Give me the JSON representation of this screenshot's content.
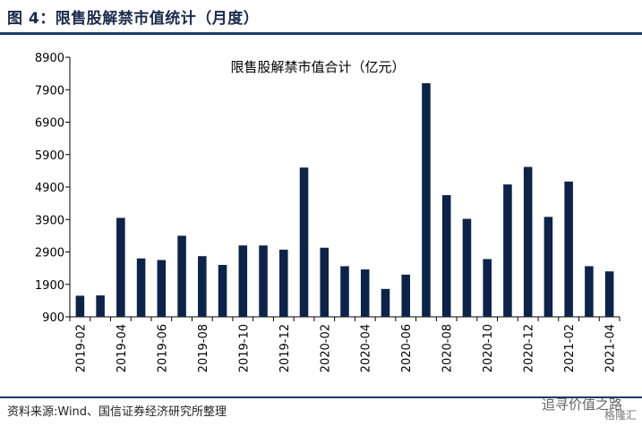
{
  "figure_title": "图 4：限售股解禁市值统计（月度）",
  "source_note": "资料来源:Wind、国信证券经济研究所整理",
  "watermark_text": "追寻价值之路",
  "watermark_logo": "格隆汇",
  "colors": {
    "bar": "#0d2348",
    "rule": "#1a3a6b"
  },
  "chart_data": {
    "type": "bar",
    "title": "限售股解禁市值合计（亿元）",
    "xlabel": "",
    "ylabel": "",
    "ylim": [
      900,
      8900
    ],
    "yticks": [
      900,
      1900,
      2900,
      3900,
      4900,
      5900,
      6900,
      7900,
      8900
    ],
    "grid": false,
    "categories": [
      "2019-02",
      "2019-03",
      "2019-04",
      "2019-05",
      "2019-06",
      "2019-07",
      "2019-08",
      "2019-09",
      "2019-10",
      "2019-11",
      "2019-12",
      "2020-01",
      "2020-02",
      "2020-03",
      "2020-04",
      "2020-05",
      "2020-06",
      "2020-07",
      "2020-08",
      "2020-09",
      "2020-10",
      "2020-11",
      "2020-12",
      "2021-01",
      "2021-02",
      "2021-03",
      "2021-04"
    ],
    "xtick_labels": [
      "2019-02",
      "2019-04",
      "2019-06",
      "2019-08",
      "2019-10",
      "2019-12",
      "2020-02",
      "2020-04",
      "2020-06",
      "2020-08",
      "2020-10",
      "2020-12",
      "2021-02",
      "2021-04"
    ],
    "values": [
      1550,
      1560,
      3950,
      2700,
      2650,
      3400,
      2770,
      2500,
      3100,
      3100,
      2970,
      5500,
      3030,
      2460,
      2360,
      1760,
      2200,
      8100,
      4650,
      3920,
      2680,
      4980,
      5520,
      3980,
      5070,
      2460,
      2300
    ]
  }
}
